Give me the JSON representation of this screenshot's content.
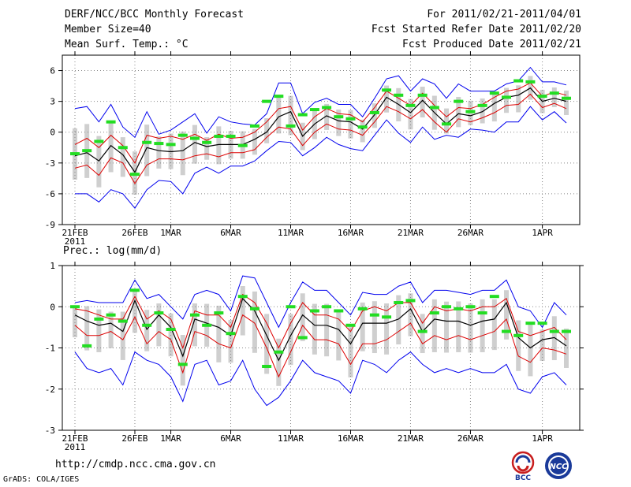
{
  "header": {
    "title": "DERF/NCC/BCC Monthly Forecast",
    "member": "Member Size=40",
    "var_top": "Mean Surf. Temp.: °C",
    "period": "For 2011/02/21-2011/04/01",
    "started": "Fcst Started Refer Date 2011/02/20",
    "produced": "Fcst Produced Date 2011/02/21"
  },
  "footer": {
    "url": "http://cmdp.ncc.cma.gov.cn",
    "grads": "GrADS: COLA/IGES",
    "logo_left": "BCC",
    "logo_right": "NCC"
  },
  "colors": {
    "spread": "#cfcfcf",
    "envelope": "#0000ee",
    "quartile": "#dd0000",
    "median": "#000000",
    "member": "#22dd22",
    "grid": "#888888"
  },
  "chart_data": [
    {
      "type": "line",
      "title": "Mean Surf. Temp.: °C",
      "ylim": [
        -9,
        7.5
      ],
      "yticks": [
        -9,
        -6,
        -3,
        0,
        3,
        6
      ],
      "xticks": [
        {
          "day": 0,
          "label": "21FEB",
          "sub": "2011"
        },
        {
          "day": 5,
          "label": "26FEB"
        },
        {
          "day": 8,
          "label": "1MAR"
        },
        {
          "day": 13,
          "label": "6MAR"
        },
        {
          "day": 18,
          "label": "11MAR"
        },
        {
          "day": 23,
          "label": "16MAR"
        },
        {
          "day": 28,
          "label": "21MAR"
        },
        {
          "day": 33,
          "label": "26MAR"
        },
        {
          "day": 39,
          "label": "1APR"
        }
      ],
      "series": [
        {
          "name": "max",
          "role": "envelope",
          "values": [
            2.3,
            2.5,
            1.0,
            2.7,
            0.5,
            -0.5,
            2.0,
            -0.2,
            0.2,
            1.0,
            1.8,
            -0.1,
            1.5,
            1.0,
            0.8,
            0.7,
            1.8,
            4.8,
            4.8,
            1.8,
            2.9,
            3.3,
            2.7,
            2.7,
            1.5,
            3.3,
            5.2,
            5.5,
            4.0,
            5.2,
            4.7,
            3.3,
            4.7,
            4.0,
            4.0,
            4.0,
            4.7,
            5.0,
            6.3,
            4.9,
            4.9,
            4.6
          ]
        },
        {
          "name": "min",
          "role": "envelope",
          "values": [
            -6.0,
            -6.0,
            -6.8,
            -5.6,
            -6.0,
            -7.4,
            -5.6,
            -4.7,
            -4.8,
            -6.0,
            -4.0,
            -3.4,
            -4.0,
            -3.3,
            -3.3,
            -2.8,
            -1.8,
            -0.9,
            -1.0,
            -2.3,
            -1.5,
            -0.5,
            -1.2,
            -1.6,
            -1.8,
            -0.3,
            1.2,
            -0.1,
            -1.0,
            0.5,
            -0.7,
            -0.3,
            -0.5,
            0.3,
            0.2,
            0.0,
            1.0,
            1.0,
            2.5,
            1.2,
            2.0,
            0.9
          ]
        },
        {
          "name": "upper-quartile",
          "role": "quartile",
          "values": [
            -1.2,
            -0.6,
            -1.5,
            -0.3,
            -1.3,
            -3.0,
            -0.3,
            -0.6,
            -0.4,
            -0.7,
            -0.2,
            -0.8,
            -0.2,
            -0.6,
            -0.5,
            0.0,
            1.0,
            2.3,
            2.5,
            0.2,
            1.5,
            2.3,
            1.8,
            1.7,
            1.0,
            2.4,
            4.0,
            3.3,
            2.6,
            3.8,
            2.6,
            1.5,
            2.4,
            2.3,
            2.7,
            3.4,
            4.0,
            4.2,
            4.8,
            3.5,
            3.9,
            3.6
          ]
        },
        {
          "name": "lower-quartile",
          "role": "quartile",
          "values": [
            -3.5,
            -3.2,
            -4.2,
            -2.5,
            -3.0,
            -5.0,
            -3.2,
            -2.6,
            -2.6,
            -2.7,
            -2.3,
            -2.1,
            -2.4,
            -2.0,
            -2.0,
            -1.7,
            -0.5,
            0.5,
            0.3,
            -1.3,
            0.0,
            0.8,
            0.3,
            0.2,
            -0.3,
            1.0,
            2.5,
            2.0,
            1.3,
            2.2,
            1.0,
            0.0,
            1.3,
            1.0,
            1.4,
            1.9,
            2.6,
            2.7,
            3.7,
            2.4,
            2.8,
            2.3
          ]
        },
        {
          "name": "median",
          "role": "median",
          "values": [
            -2.3,
            -2.0,
            -2.8,
            -1.3,
            -2.2,
            -3.9,
            -1.5,
            -1.8,
            -1.9,
            -1.8,
            -1.0,
            -1.4,
            -1.2,
            -1.2,
            -1.2,
            -0.7,
            0.0,
            1.5,
            2.0,
            -0.4,
            0.8,
            1.6,
            1.1,
            1.0,
            0.3,
            1.7,
            3.4,
            2.7,
            1.9,
            3.1,
            1.9,
            0.8,
            1.8,
            1.6,
            2.0,
            2.8,
            3.4,
            3.6,
            4.3,
            3.0,
            3.3,
            3.0
          ]
        },
        {
          "name": "member",
          "role": "member",
          "values": [
            -2.1,
            -1.8,
            -0.9,
            1.0,
            -1.5,
            -4.1,
            -1.0,
            -1.1,
            -1.2,
            -0.3,
            -0.6,
            -1.0,
            -0.4,
            -0.4,
            -1.3,
            0.6,
            3.0,
            3.5,
            0.6,
            1.7,
            2.2,
            2.4,
            1.5,
            1.3,
            0.5,
            1.9,
            4.1,
            3.6,
            2.6,
            3.6,
            2.4,
            0.8,
            3.0,
            2.0,
            2.6,
            3.8,
            3.4,
            5.0,
            4.9,
            3.5,
            3.8,
            3.3
          ]
        }
      ]
    },
    {
      "type": "line",
      "title": "Prec.: log(mm/d)",
      "ylim": [
        -3,
        1
      ],
      "yticks": [
        -3,
        -2,
        -1,
        0,
        1
      ],
      "xticks": [
        {
          "day": 0,
          "label": "21FEB",
          "sub": "2011"
        },
        {
          "day": 5,
          "label": "26FEB"
        },
        {
          "day": 8,
          "label": "1MAR"
        },
        {
          "day": 13,
          "label": "6MAR"
        },
        {
          "day": 18,
          "label": "11MAR"
        },
        {
          "day": 23,
          "label": "16MAR"
        },
        {
          "day": 28,
          "label": "21MAR"
        },
        {
          "day": 33,
          "label": "26MAR"
        },
        {
          "day": 39,
          "label": "1APR"
        }
      ],
      "series": [
        {
          "name": "max",
          "role": "envelope",
          "values": [
            0.1,
            0.15,
            0.1,
            0.1,
            0.1,
            0.65,
            0.2,
            0.3,
            0.0,
            -0.3,
            0.3,
            0.4,
            0.3,
            -0.1,
            0.75,
            0.7,
            0.1,
            -0.5,
            0.1,
            0.6,
            0.4,
            0.4,
            0.1,
            -0.2,
            0.35,
            0.3,
            0.3,
            0.5,
            0.6,
            0.1,
            0.4,
            0.4,
            0.35,
            0.3,
            0.4,
            0.4,
            0.65,
            0.0,
            -0.1,
            -0.5,
            0.1,
            -0.2
          ]
        },
        {
          "name": "min",
          "role": "envelope",
          "values": [
            -1.1,
            -1.5,
            -1.6,
            -1.5,
            -1.9,
            -1.1,
            -1.3,
            -1.4,
            -1.7,
            -2.3,
            -1.4,
            -1.3,
            -1.9,
            -1.8,
            -1.3,
            -2.0,
            -2.4,
            -2.2,
            -1.8,
            -1.3,
            -1.6,
            -1.7,
            -1.8,
            -2.1,
            -1.3,
            -1.4,
            -1.6,
            -1.3,
            -1.1,
            -1.4,
            -1.6,
            -1.5,
            -1.6,
            -1.5,
            -1.6,
            -1.6,
            -1.4,
            -2.0,
            -2.1,
            -1.7,
            -1.6,
            -1.9
          ]
        },
        {
          "name": "upper-quartile",
          "role": "quartile",
          "values": [
            -0.05,
            -0.1,
            -0.2,
            -0.3,
            -0.3,
            0.25,
            -0.3,
            -0.1,
            -0.3,
            -1.0,
            -0.1,
            -0.2,
            -0.2,
            -0.5,
            0.3,
            0.1,
            -0.4,
            -1.0,
            -0.4,
            0.1,
            -0.2,
            -0.2,
            -0.3,
            -0.6,
            -0.1,
            0.0,
            -0.1,
            0.1,
            0.1,
            -0.4,
            0.0,
            -0.1,
            -0.05,
            -0.1,
            0.0,
            0.0,
            0.2,
            -0.6,
            -0.7,
            -0.6,
            -0.5,
            -0.8
          ]
        },
        {
          "name": "lower-quartile",
          "role": "quartile",
          "values": [
            -0.45,
            -0.7,
            -0.7,
            -0.6,
            -0.8,
            -0.25,
            -0.9,
            -0.6,
            -0.8,
            -1.6,
            -0.6,
            -0.7,
            -0.9,
            -1.0,
            -0.2,
            -0.4,
            -1.0,
            -1.7,
            -1.1,
            -0.45,
            -0.8,
            -0.8,
            -0.9,
            -1.4,
            -0.9,
            -0.9,
            -0.8,
            -0.6,
            -0.4,
            -0.9,
            -0.7,
            -0.8,
            -0.7,
            -0.8,
            -0.7,
            -0.6,
            -0.3,
            -1.2,
            -1.35,
            -1.0,
            -1.05,
            -1.15
          ]
        },
        {
          "name": "median",
          "role": "median",
          "values": [
            -0.2,
            -0.35,
            -0.45,
            -0.4,
            -0.6,
            0.15,
            -0.55,
            -0.2,
            -0.5,
            -1.2,
            -0.3,
            -0.4,
            -0.5,
            -0.7,
            0.2,
            -0.1,
            -0.7,
            -1.3,
            -0.7,
            -0.2,
            -0.45,
            -0.45,
            -0.55,
            -0.9,
            -0.4,
            -0.4,
            -0.4,
            -0.3,
            -0.05,
            -0.6,
            -0.3,
            -0.35,
            -0.35,
            -0.45,
            -0.35,
            -0.3,
            0.1,
            -0.75,
            -1.0,
            -0.8,
            -0.75,
            -0.95
          ]
        },
        {
          "name": "member",
          "role": "member",
          "values": [
            0.0,
            -0.95,
            -0.3,
            -0.2,
            -0.35,
            0.4,
            -0.45,
            -0.15,
            -0.55,
            -1.4,
            -0.2,
            -0.45,
            -0.15,
            -0.65,
            0.25,
            -0.05,
            -1.45,
            -1.1,
            0.0,
            -0.75,
            -0.1,
            0.0,
            -0.1,
            -0.45,
            -0.05,
            -0.2,
            -0.25,
            0.1,
            0.15,
            -0.6,
            -0.15,
            0.0,
            -0.05,
            0.0,
            -0.15,
            0.25,
            -0.6,
            -0.7,
            -0.4,
            -0.4,
            -0.6,
            -0.6
          ]
        }
      ]
    }
  ]
}
